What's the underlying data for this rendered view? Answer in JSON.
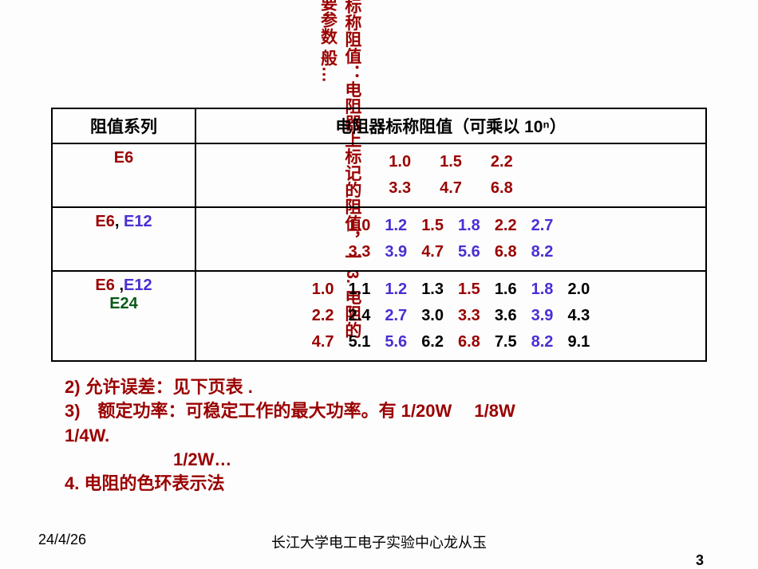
{
  "vertical_overlay": "2) 标称阻值：电阻器上标记的阻值，一\n3. 电阻的主要参数\n般…",
  "table": {
    "header": {
      "series": "阻值系列",
      "values": "电阻器标称阻值（可乘以 10ⁿ）"
    },
    "rows": [
      {
        "series_html": [
          {
            "text": "E6",
            "cls": "c-e6"
          }
        ],
        "value_tokens": [
          {
            "t": "1.0",
            "c": "c-e6"
          },
          {
            "t": "  ",
            "c": "c-black"
          },
          {
            "t": "1.5",
            "c": "c-e6"
          },
          {
            "t": "  ",
            "c": "c-black"
          },
          {
            "t": "2.2",
            "c": "c-e6"
          },
          {
            "br": true
          },
          {
            "t": "3.3",
            "c": "c-e6"
          },
          {
            "t": "  ",
            "c": "c-black"
          },
          {
            "t": "4.7",
            "c": "c-e6"
          },
          {
            "t": "  ",
            "c": "c-black"
          },
          {
            "t": "6.8",
            "c": "c-e6"
          }
        ]
      },
      {
        "series_html": [
          {
            "text": "E6",
            "cls": "c-e6"
          },
          {
            "text": ", ",
            "cls": "c-black"
          },
          {
            "text": "E12",
            "cls": "c-e12"
          }
        ],
        "value_tokens": [
          {
            "t": "1.0",
            "c": "c-e6"
          },
          {
            "t": "1.2",
            "c": "c-e12"
          },
          {
            "t": "1.5",
            "c": "c-e6"
          },
          {
            "t": "1.8",
            "c": "c-e12"
          },
          {
            "t": "2.2",
            "c": "c-e6"
          },
          {
            "t": "2.7",
            "c": "c-e12"
          },
          {
            "br": true
          },
          {
            "t": "3.3",
            "c": "c-e6"
          },
          {
            "t": "3.9",
            "c": "c-e12"
          },
          {
            "t": "4.7",
            "c": "c-e6"
          },
          {
            "t": "5.6",
            "c": "c-e12"
          },
          {
            "t": "6.8",
            "c": "c-e6"
          },
          {
            "t": "8.2",
            "c": "c-e12"
          }
        ]
      },
      {
        "series_html": [
          {
            "text": "E6 ",
            "cls": "c-e6"
          },
          {
            "text": ",",
            "cls": "c-black"
          },
          {
            "text": "E12",
            "cls": "c-e12"
          },
          {
            "br": true
          },
          {
            "text": "E24",
            "cls": "c-e24"
          }
        ],
        "value_tokens": [
          {
            "t": "1.0",
            "c": "c-e6"
          },
          {
            "t": "1.1",
            "c": "c-black"
          },
          {
            "t": "1.2",
            "c": "c-e12"
          },
          {
            "t": "1.3",
            "c": "c-black"
          },
          {
            "t": "1.5",
            "c": "c-e6"
          },
          {
            "t": "1.6",
            "c": "c-black"
          },
          {
            "t": "1.8",
            "c": "c-e12"
          },
          {
            "t": "2.0",
            "c": "c-black"
          },
          {
            "br": true
          },
          {
            "t": "2.2",
            "c": "c-e6"
          },
          {
            "t": "2.4",
            "c": "c-black"
          },
          {
            "t": "2.7",
            "c": "c-e12"
          },
          {
            "t": "3.0",
            "c": "c-black"
          },
          {
            "t": "3.3",
            "c": "c-e6"
          },
          {
            "t": "3.6",
            "c": "c-black"
          },
          {
            "t": "3.9",
            "c": "c-e12"
          },
          {
            "t": "4.3",
            "c": "c-black"
          },
          {
            "br": true
          },
          {
            "t": "4.7",
            "c": "c-e6"
          },
          {
            "t": "5.1",
            "c": "c-black"
          },
          {
            "t": "5.6",
            "c": "c-e12"
          },
          {
            "t": "6.2",
            "c": "c-black"
          },
          {
            "t": "6.8",
            "c": "c-e6"
          },
          {
            "t": "7.5",
            "c": "c-black"
          },
          {
            "t": "8.2",
            "c": "c-e12"
          },
          {
            "t": "9.1",
            "c": "c-black"
          }
        ]
      }
    ]
  },
  "notes": {
    "line1": "2) 允许误差：见下页表 .",
    "line2": "3)　额定功率：可稳定工作的最大功率。有 1/20W　 1/8W",
    "line3": "1/4W.",
    "line4_indent": "1/2W…",
    "line5": "4. 电阻的色环表示法"
  },
  "footer": {
    "date": "24/4/26",
    "center": "长江大学电工电子实验中心龙从玉",
    "page_number": "3"
  },
  "colors": {
    "e6": "#9a0000",
    "e12": "#4a2ed4",
    "e24": "#0a5a17",
    "black": "#000000",
    "notes": "#9a0000"
  }
}
